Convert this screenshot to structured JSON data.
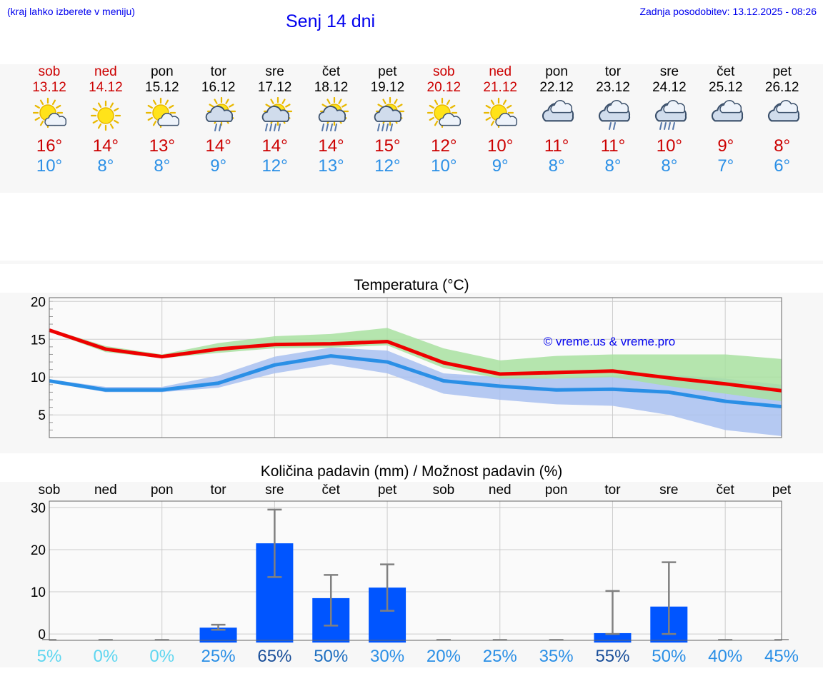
{
  "header": {
    "hint": "(kraj lahko izberete v meniju)",
    "title": "Senj 14 dni",
    "updated": "Zadnja posodobitev: 13.12.2025 - 08:26"
  },
  "days": [
    {
      "name": "sob",
      "date": "13.12",
      "max": "16°",
      "min": "10°",
      "icon": "partly-sunny-icon",
      "weekend": true
    },
    {
      "name": "ned",
      "date": "14.12",
      "max": "14°",
      "min": "8°",
      "icon": "sun-icon",
      "weekend": true
    },
    {
      "name": "pon",
      "date": "15.12",
      "max": "13°",
      "min": "8°",
      "icon": "partly-sunny-icon",
      "weekend": false
    },
    {
      "name": "tor",
      "date": "16.12",
      "max": "14°",
      "min": "9°",
      "icon": "sun-cloud-light-rain-icon",
      "weekend": false
    },
    {
      "name": "sre",
      "date": "17.12",
      "max": "14°",
      "min": "12°",
      "icon": "sun-cloud-rain-icon",
      "weekend": false
    },
    {
      "name": "čet",
      "date": "18.12",
      "max": "14°",
      "min": "13°",
      "icon": "sun-cloud-rain-icon",
      "weekend": false
    },
    {
      "name": "pet",
      "date": "19.12",
      "max": "15°",
      "min": "12°",
      "icon": "sun-cloud-rain-icon",
      "weekend": false
    },
    {
      "name": "sob",
      "date": "20.12",
      "max": "12°",
      "min": "10°",
      "icon": "partly-sunny-icon",
      "weekend": true
    },
    {
      "name": "ned",
      "date": "21.12",
      "max": "10°",
      "min": "9°",
      "icon": "partly-sunny-icon",
      "weekend": true
    },
    {
      "name": "pon",
      "date": "22.12",
      "max": "11°",
      "min": "8°",
      "icon": "cloud-icon",
      "weekend": false
    },
    {
      "name": "tor",
      "date": "23.12",
      "max": "11°",
      "min": "8°",
      "icon": "cloud-light-rain-icon",
      "weekend": false
    },
    {
      "name": "sre",
      "date": "24.12",
      "max": "10°",
      "min": "8°",
      "icon": "cloud-rain-icon",
      "weekend": false
    },
    {
      "name": "čet",
      "date": "25.12",
      "max": "9°",
      "min": "7°",
      "icon": "cloud-icon",
      "weekend": false
    },
    {
      "name": "pet",
      "date": "26.12",
      "max": "8°",
      "min": "6°",
      "icon": "cloud-icon",
      "weekend": false
    }
  ],
  "colors": {
    "max": "#ee0000",
    "min": "#2a8fe6",
    "max_band": "#a8e0a0",
    "min_band": "#a8c0f0",
    "bar": "#0055ff",
    "whisker": "#808080"
  },
  "chart_data": [
    {
      "type": "line",
      "title": "Temperatura (°C)",
      "watermark": "© vreme.us & vreme.pro",
      "ylim": [
        2,
        20.5
      ],
      "yticks": [
        "5",
        "10",
        "15",
        "20"
      ],
      "ytick_values": [
        5,
        10,
        15,
        20
      ],
      "x": [
        0,
        1,
        2,
        3,
        4,
        5,
        6,
        7,
        8,
        9,
        10,
        11,
        12,
        13
      ],
      "series": [
        {
          "name": "max",
          "values": [
            16.2,
            13.7,
            12.7,
            13.7,
            14.3,
            14.4,
            14.7,
            11.9,
            10.4,
            10.6,
            10.8,
            9.9,
            9.1,
            8.2
          ],
          "band_low": [
            16,
            13.3,
            12.5,
            13.2,
            13.8,
            13.9,
            14.2,
            11.2,
            9.8,
            9.8,
            10.0,
            8.8,
            7.8,
            6.8
          ],
          "band_high": [
            16.4,
            14.1,
            13.0,
            14.5,
            15.4,
            15.7,
            16.5,
            13.8,
            12.2,
            12.8,
            13.0,
            13.0,
            13.0,
            12.4
          ]
        },
        {
          "name": "min",
          "values": [
            9.5,
            8.3,
            8.3,
            9.2,
            11.6,
            12.8,
            12.0,
            9.5,
            8.8,
            8.3,
            8.4,
            8.0,
            6.8,
            6.1
          ],
          "band_low": [
            9.3,
            8.0,
            8.0,
            8.6,
            10.5,
            11.7,
            10.5,
            7.8,
            7.0,
            6.4,
            6.2,
            5.0,
            3.0,
            2.2
          ],
          "band_high": [
            9.7,
            8.7,
            8.7,
            10.2,
            12.7,
            13.9,
            13.5,
            10.5,
            10.0,
            9.8,
            10.2,
            10.3,
            9.8,
            9.0
          ]
        }
      ]
    },
    {
      "type": "bar",
      "title": "Količina padavin (mm) / Možnost padavin (%)",
      "ylim": [
        -1.5,
        31.5
      ],
      "yticks": [
        "0",
        "10",
        "20",
        "30"
      ],
      "ytick_values": [
        0,
        10,
        20,
        30
      ],
      "categories": [
        "sob",
        "ned",
        "pon",
        "tor",
        "sre",
        "čet",
        "pet",
        "sob",
        "ned",
        "pon",
        "tor",
        "sre",
        "čet",
        "pet"
      ],
      "values": [
        0,
        0,
        0,
        1.5,
        21.5,
        8.5,
        11.0,
        0,
        0,
        0,
        0.2,
        6.5,
        0,
        0
      ],
      "err_low": [
        0,
        0,
        0,
        1.0,
        13.5,
        2.0,
        5.5,
        0,
        0,
        0,
        0,
        0,
        0,
        0
      ],
      "err_high": [
        0,
        0,
        0,
        2.2,
        29.5,
        14.0,
        16.5,
        0,
        0,
        0,
        10.2,
        17.0,
        0,
        0
      ],
      "chance": [
        "5%",
        "0%",
        "0%",
        "25%",
        "65%",
        "50%",
        "30%",
        "20%",
        "25%",
        "35%",
        "55%",
        "50%",
        "40%",
        "45%"
      ],
      "chance_colors": [
        "#5ed6f0",
        "#5ed6f0",
        "#5ed6f0",
        "#2a8fe6",
        "#1a4f9a",
        "#1e6fc0",
        "#2a8fe6",
        "#2a8fe6",
        "#2a8fe6",
        "#2a8fe6",
        "#1a4f9a",
        "#2a8fe6",
        "#2a8fe6",
        "#2a8fe6"
      ]
    }
  ]
}
